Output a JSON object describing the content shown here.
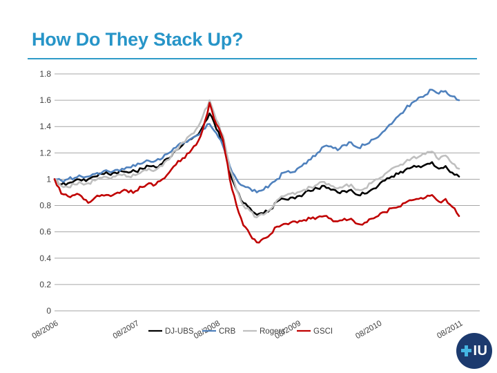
{
  "slide": {
    "title": "How Do They Stack Up?",
    "title_color": "#2795c8",
    "accent_underline_color": "#2e9ac8",
    "background_color": "#ffffff"
  },
  "logo": {
    "text": "IU",
    "circle_color": "#1c3a6e",
    "plus_color": "#45b5e2",
    "text_color": "#ffffff"
  },
  "chart_data": {
    "type": "line",
    "title": "",
    "xlabel": "",
    "ylabel": "",
    "ylim": [
      0,
      1.8
    ],
    "grid": true,
    "grid_color": "#a6a6a6",
    "axis_text_color": "#3f3f3f",
    "legend_position": "bottom",
    "y_tick_labels": [
      "1.8",
      "1.6",
      "1.4",
      "1.2",
      "1",
      "0.8",
      "0.6",
      "0.4",
      "0.2",
      "0"
    ],
    "x_tick_labels": [
      "08/2006",
      "08/2007",
      "08/2008",
      "08/2009",
      "08/2010",
      "08/2011"
    ],
    "x_note": "monthly points from 08/2006 to 08/2011, all series indexed to 1 at start",
    "series": [
      {
        "name": "DJ-UBS",
        "color": "#000000",
        "values": [
          1.0,
          0.96,
          0.97,
          0.99,
          0.99,
          1.0,
          1.02,
          1.04,
          1.04,
          1.05,
          1.06,
          1.05,
          1.06,
          1.08,
          1.1,
          1.09,
          1.12,
          1.16,
          1.22,
          1.26,
          1.3,
          1.33,
          1.4,
          1.5,
          1.38,
          1.28,
          1.05,
          0.92,
          0.82,
          0.78,
          0.73,
          0.74,
          0.77,
          0.83,
          0.85,
          0.86,
          0.87,
          0.89,
          0.91,
          0.93,
          0.95,
          0.92,
          0.9,
          0.91,
          0.92,
          0.88,
          0.89,
          0.92,
          0.95,
          0.99,
          1.02,
          1.04,
          1.07,
          1.09,
          1.1,
          1.11,
          1.13,
          1.08,
          1.1,
          1.05,
          1.02
        ]
      },
      {
        "name": "CRB",
        "color": "#4f81bd",
        "values": [
          1.0,
          0.99,
          1.0,
          1.01,
          1.02,
          1.02,
          1.04,
          1.05,
          1.06,
          1.07,
          1.08,
          1.09,
          1.1,
          1.12,
          1.14,
          1.14,
          1.16,
          1.2,
          1.24,
          1.27,
          1.3,
          1.33,
          1.38,
          1.42,
          1.35,
          1.25,
          1.1,
          1.0,
          0.95,
          0.93,
          0.9,
          0.92,
          0.96,
          1.0,
          1.05,
          1.05,
          1.08,
          1.12,
          1.15,
          1.2,
          1.25,
          1.25,
          1.22,
          1.26,
          1.28,
          1.24,
          1.26,
          1.3,
          1.32,
          1.37,
          1.42,
          1.48,
          1.53,
          1.58,
          1.62,
          1.64,
          1.68,
          1.65,
          1.67,
          1.63,
          1.6
        ]
      },
      {
        "name": "Rogers",
        "color": "#bfbfbf",
        "values": [
          1.0,
          0.95,
          0.94,
          0.96,
          0.97,
          0.97,
          0.99,
          1.01,
          1.01,
          1.02,
          1.03,
          1.02,
          1.03,
          1.06,
          1.08,
          1.07,
          1.1,
          1.15,
          1.22,
          1.28,
          1.33,
          1.38,
          1.48,
          1.6,
          1.45,
          1.33,
          1.08,
          0.92,
          0.8,
          0.76,
          0.71,
          0.73,
          0.77,
          0.84,
          0.87,
          0.89,
          0.9,
          0.92,
          0.94,
          0.96,
          0.98,
          0.95,
          0.93,
          0.95,
          0.96,
          0.92,
          0.93,
          0.97,
          1.0,
          1.04,
          1.08,
          1.1,
          1.13,
          1.16,
          1.17,
          1.19,
          1.21,
          1.15,
          1.18,
          1.12,
          1.08
        ]
      },
      {
        "name": "GSCI",
        "color": "#c00000",
        "values": [
          1.0,
          0.89,
          0.87,
          0.88,
          0.87,
          0.82,
          0.86,
          0.88,
          0.88,
          0.89,
          0.91,
          0.9,
          0.91,
          0.94,
          0.97,
          0.96,
          1.0,
          1.05,
          1.11,
          1.16,
          1.2,
          1.26,
          1.38,
          1.58,
          1.42,
          1.3,
          1.0,
          0.8,
          0.65,
          0.58,
          0.52,
          0.55,
          0.58,
          0.64,
          0.66,
          0.67,
          0.67,
          0.69,
          0.7,
          0.71,
          0.72,
          0.7,
          0.68,
          0.7,
          0.7,
          0.66,
          0.67,
          0.7,
          0.72,
          0.75,
          0.78,
          0.79,
          0.82,
          0.84,
          0.85,
          0.86,
          0.88,
          0.83,
          0.85,
          0.79,
          0.72
        ]
      }
    ]
  }
}
